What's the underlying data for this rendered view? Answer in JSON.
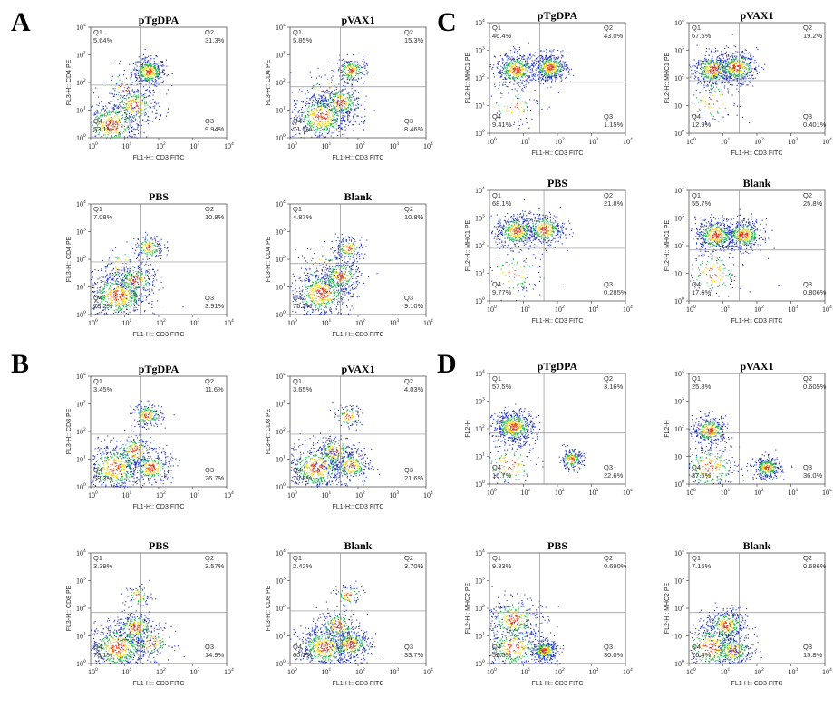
{
  "panels": [
    {
      "letter": "A",
      "color_map": "density-jet"
    },
    {
      "letter": "B"
    },
    {
      "letter": "C"
    },
    {
      "letter": "D"
    }
  ],
  "tick_labels": [
    "10",
    "0",
    "10",
    "1",
    "10",
    "2",
    "10",
    "3",
    "10",
    "4"
  ],
  "colors": {
    "low": "#1b2db8",
    "mid": "#22b14c",
    "high": "#f2d21b",
    "hot": "#e2401a",
    "gate": "#909090"
  },
  "chart_data": [
    {
      "type": "scatter",
      "panel": "A",
      "title": "pTgDPA",
      "xlabel": "FL1-H:: CD3 FITC",
      "ylabel": "FL3-H:: CD4 PE",
      "xscale": "log",
      "yscale": "log",
      "xlim": [
        1,
        10000
      ],
      "ylim": [
        1,
        10000
      ],
      "gate": [
        30,
        80
      ],
      "quadrants": {
        "Q1": "5.64%",
        "Q2": "31.3%",
        "Q3": "9.94%",
        "Q4": "53.1%"
      },
      "clusters": [
        {
          "x": 50,
          "y": 250,
          "n": 420,
          "s": 0.25
        },
        {
          "x": 4,
          "y": 3,
          "n": 500,
          "s": 0.45
        },
        {
          "x": 20,
          "y": 15,
          "n": 300,
          "s": 0.35
        },
        {
          "x": 10,
          "y": 70,
          "n": 60,
          "s": 0.35
        }
      ]
    },
    {
      "type": "scatter",
      "panel": "A",
      "title": "pVAX1",
      "xlabel": "FL1-H:: CD3 FITC",
      "ylabel": "FL3-H:: CD4 PE",
      "xscale": "log",
      "yscale": "log",
      "xlim": [
        1,
        10000
      ],
      "ylim": [
        1,
        10000
      ],
      "gate": [
        30,
        70
      ],
      "quadrants": {
        "Q1": "5.85%",
        "Q2": "15.3%",
        "Q3": "8.46%",
        "Q4": "71.2%"
      },
      "clusters": [
        {
          "x": 60,
          "y": 280,
          "n": 220,
          "s": 0.22
        },
        {
          "x": 8,
          "y": 6,
          "n": 650,
          "s": 0.45
        },
        {
          "x": 30,
          "y": 20,
          "n": 300,
          "s": 0.3
        },
        {
          "x": 10,
          "y": 60,
          "n": 50,
          "s": 0.35
        }
      ]
    },
    {
      "type": "scatter",
      "panel": "A",
      "title": "PBS",
      "xlabel": "FL1-H:: CD3 FITC",
      "ylabel": "FL3-H:: CD4 PE",
      "xscale": "log",
      "yscale": "log",
      "xlim": [
        1,
        10000
      ],
      "ylim": [
        1,
        10000
      ],
      "gate": [
        30,
        80
      ],
      "quadrants": {
        "Q1": "7.08%",
        "Q2": "10.8%",
        "Q3": "3.91%",
        "Q4": "78.2%"
      },
      "clusters": [
        {
          "x": 50,
          "y": 280,
          "n": 180,
          "s": 0.22
        },
        {
          "x": 6,
          "y": 5,
          "n": 700,
          "s": 0.45
        },
        {
          "x": 20,
          "y": 18,
          "n": 250,
          "s": 0.3
        },
        {
          "x": 8,
          "y": 60,
          "n": 60,
          "s": 0.35
        }
      ]
    },
    {
      "type": "scatter",
      "panel": "A",
      "title": "Blank",
      "xlabel": "FL1-H:: CD3 FITC",
      "ylabel": "FL3-H:: CD4 PE",
      "xscale": "log",
      "yscale": "log",
      "xlim": [
        1,
        10000
      ],
      "ylim": [
        1,
        10000
      ],
      "gate": [
        30,
        70
      ],
      "quadrants": {
        "Q1": "4.87%",
        "Q2": "10.8%",
        "Q3": "9.10%",
        "Q4": "75.2%"
      },
      "clusters": [
        {
          "x": 50,
          "y": 250,
          "n": 160,
          "s": 0.22
        },
        {
          "x": 8,
          "y": 6,
          "n": 650,
          "s": 0.45
        },
        {
          "x": 30,
          "y": 25,
          "n": 300,
          "s": 0.3
        },
        {
          "x": 8,
          "y": 60,
          "n": 50,
          "s": 0.35
        }
      ]
    },
    {
      "type": "scatter",
      "panel": "B",
      "title": "pTgDPA",
      "xlabel": "FL1-H:: CD3 FITC",
      "ylabel": "FL3-H:: CD8 PE",
      "xscale": "log",
      "yscale": "log",
      "xlim": [
        1,
        10000
      ],
      "ylim": [
        1,
        10000
      ],
      "gate": [
        30,
        80
      ],
      "quadrants": {
        "Q1": "3.45%",
        "Q2": "11.6%",
        "Q3": "26.7%",
        "Q4": "58.3%"
      },
      "clusters": [
        {
          "x": 45,
          "y": 400,
          "n": 200,
          "s": 0.22
        },
        {
          "x": 5,
          "y": 5,
          "n": 500,
          "s": 0.45
        },
        {
          "x": 60,
          "y": 5,
          "n": 300,
          "s": 0.3
        },
        {
          "x": 20,
          "y": 20,
          "n": 200,
          "s": 0.3
        }
      ]
    },
    {
      "type": "scatter",
      "panel": "B",
      "title": "pVAX1",
      "xlabel": "FL1-H:: CD3 FITC",
      "ylabel": "FL3-H:: CD8 PE",
      "xscale": "log",
      "yscale": "log",
      "xlim": [
        1,
        10000
      ],
      "ylim": [
        1,
        10000
      ],
      "gate": [
        30,
        80
      ],
      "quadrants": {
        "Q1": "3.65%",
        "Q2": "4.03%",
        "Q3": "21.6%",
        "Q4": "70.8%"
      },
      "clusters": [
        {
          "x": 50,
          "y": 350,
          "n": 100,
          "s": 0.22
        },
        {
          "x": 6,
          "y": 5,
          "n": 600,
          "s": 0.45
        },
        {
          "x": 60,
          "y": 6,
          "n": 260,
          "s": 0.3
        },
        {
          "x": 20,
          "y": 20,
          "n": 220,
          "s": 0.3
        }
      ]
    },
    {
      "type": "scatter",
      "panel": "B",
      "title": "PBS",
      "xlabel": "FL1-H:: CD3 FITC",
      "ylabel": "FL3-H:: CD8 PE",
      "xscale": "log",
      "yscale": "log",
      "xlim": [
        1,
        10000
      ],
      "ylim": [
        1,
        10000
      ],
      "gate": [
        30,
        70
      ],
      "quadrants": {
        "Q1": "3.39%",
        "Q2": "3.57%",
        "Q3": "14.9%",
        "Q4": "78.1%"
      },
      "clusters": [
        {
          "x": 25,
          "y": 300,
          "n": 80,
          "s": 0.2
        },
        {
          "x": 6,
          "y": 4,
          "n": 650,
          "s": 0.45
        },
        {
          "x": 20,
          "y": 20,
          "n": 300,
          "s": 0.3
        },
        {
          "x": 60,
          "y": 6,
          "n": 150,
          "s": 0.3
        }
      ]
    },
    {
      "type": "scatter",
      "panel": "B",
      "title": "Blank",
      "xlabel": "FL1-H:: CD3 FITC",
      "ylabel": "FL3-H:: CD8 PE",
      "xscale": "log",
      "yscale": "log",
      "xlim": [
        1,
        10000
      ],
      "ylim": [
        1,
        10000
      ],
      "gate": [
        30,
        80
      ],
      "quadrants": {
        "Q1": "2.42%",
        "Q2": "3.70%",
        "Q3": "33.7%",
        "Q4": "60.1%"
      },
      "clusters": [
        {
          "x": 50,
          "y": 300,
          "n": 90,
          "s": 0.22
        },
        {
          "x": 10,
          "y": 4,
          "n": 600,
          "s": 0.4
        },
        {
          "x": 60,
          "y": 5,
          "n": 350,
          "s": 0.3
        },
        {
          "x": 25,
          "y": 25,
          "n": 200,
          "s": 0.3
        }
      ]
    },
    {
      "type": "scatter",
      "panel": "C",
      "title": "pTgDPA",
      "xlabel": "FL1-H:: CD3 FITC",
      "ylabel": "FL2-H:: MHC1 PE",
      "xscale": "log",
      "yscale": "log",
      "xlim": [
        1,
        10000
      ],
      "ylim": [
        1,
        10000
      ],
      "gate": [
        30,
        70
      ],
      "quadrants": {
        "Q1": "46.4%",
        "Q2": "43.0%",
        "Q3": "1.15%",
        "Q4": "9.41%"
      },
      "clusters": [
        {
          "x": 6,
          "y": 200,
          "n": 500,
          "s": 0.3
        },
        {
          "x": 60,
          "y": 250,
          "n": 500,
          "s": 0.25
        },
        {
          "x": 5,
          "y": 10,
          "n": 80,
          "s": 0.4
        }
      ]
    },
    {
      "type": "scatter",
      "panel": "C",
      "title": "pVAX1",
      "xlabel": "FL1-H:: CD3 FITC",
      "ylabel": "FL2-H:: MHC1 PE",
      "xscale": "log",
      "yscale": "log",
      "xlim": [
        1,
        10000
      ],
      "ylim": [
        1,
        10000
      ],
      "gate": [
        30,
        80
      ],
      "quadrants": {
        "Q1": "67.5%",
        "Q2": "19.2%",
        "Q3": "0.401%",
        "Q4": "12.9%"
      },
      "clusters": [
        {
          "x": 5,
          "y": 200,
          "n": 500,
          "s": 0.3
        },
        {
          "x": 25,
          "y": 250,
          "n": 450,
          "s": 0.3
        },
        {
          "x": 5,
          "y": 15,
          "n": 100,
          "s": 0.45
        }
      ]
    },
    {
      "type": "scatter",
      "panel": "C",
      "title": "PBS",
      "xlabel": "FL1-H:: CD3 FITC",
      "ylabel": "FL2-H:: MHC1 PE",
      "xscale": "log",
      "yscale": "log",
      "xlim": [
        1,
        10000
      ],
      "ylim": [
        1,
        10000
      ],
      "gate": [
        40,
        80
      ],
      "quadrants": {
        "Q1": "68.1%",
        "Q2": "21.8%",
        "Q3": "0.285%",
        "Q4": "9.77%"
      },
      "clusters": [
        {
          "x": 6,
          "y": 350,
          "n": 500,
          "s": 0.3
        },
        {
          "x": 40,
          "y": 400,
          "n": 380,
          "s": 0.3
        },
        {
          "x": 5,
          "y": 10,
          "n": 100,
          "s": 0.45
        }
      ]
    },
    {
      "type": "scatter",
      "panel": "C",
      "title": "Blank",
      "xlabel": "FL1-H:: CD3 FITC",
      "ylabel": "FL2-H:: MHC1 PE",
      "xscale": "log",
      "yscale": "log",
      "xlim": [
        1,
        10000
      ],
      "ylim": [
        1,
        10000
      ],
      "gate": [
        30,
        70
      ],
      "quadrants": {
        "Q1": "55.7%",
        "Q2": "25.8%",
        "Q3": "0.806%",
        "Q4": "17.6%"
      },
      "clusters": [
        {
          "x": 6,
          "y": 250,
          "n": 500,
          "s": 0.3
        },
        {
          "x": 40,
          "y": 250,
          "n": 450,
          "s": 0.28
        },
        {
          "x": 5,
          "y": 10,
          "n": 160,
          "s": 0.45
        }
      ]
    },
    {
      "type": "scatter",
      "panel": "D",
      "title": "pTgDPA",
      "xlabel": "",
      "ylabel": "FL2-H",
      "xscale": "log",
      "yscale": "log",
      "xlim": [
        1,
        10000
      ],
      "ylim": [
        1,
        10000
      ],
      "gate": [
        40,
        70
      ],
      "quadrants": {
        "Q1": "57.5%",
        "Q2": "3.16%",
        "Q3": "22.6%",
        "Q4": "16.7%"
      },
      "clusters": [
        {
          "x": 5,
          "y": 120,
          "n": 600,
          "s": 0.3
        },
        {
          "x": 250,
          "y": 8,
          "n": 220,
          "s": 0.18
        },
        {
          "x": 4,
          "y": 5,
          "n": 150,
          "s": 0.45
        }
      ]
    },
    {
      "type": "scatter",
      "panel": "D",
      "title": "pVAX1",
      "xlabel": "",
      "ylabel": "FL2-H",
      "xscale": "log",
      "yscale": "log",
      "xlim": [
        1,
        10000
      ],
      "ylim": [
        1,
        10000
      ],
      "gate": [
        30,
        70
      ],
      "quadrants": {
        "Q1": "25.8%",
        "Q2": "0.605%",
        "Q3": "36.0%",
        "Q4": "37.5%"
      },
      "clusters": [
        {
          "x": 4,
          "y": 90,
          "n": 350,
          "s": 0.25
        },
        {
          "x": 200,
          "y": 4,
          "n": 350,
          "s": 0.2
        },
        {
          "x": 4,
          "y": 4,
          "n": 300,
          "s": 0.45
        }
      ]
    },
    {
      "type": "scatter",
      "panel": "D",
      "title": "PBS",
      "xlabel": "FL1-H:: CD3 FITC",
      "ylabel": "FL2-H:: MHC2 PE",
      "xscale": "log",
      "yscale": "log",
      "xlim": [
        1,
        10000
      ],
      "ylim": [
        1,
        10000
      ],
      "gate": [
        30,
        70
      ],
      "quadrants": {
        "Q1": "9.83%",
        "Q2": "0.690%",
        "Q3": "30.0%",
        "Q4": "59.5%"
      },
      "clusters": [
        {
          "x": 5,
          "y": 40,
          "n": 350,
          "s": 0.4
        },
        {
          "x": 40,
          "y": 3,
          "n": 380,
          "s": 0.2
        },
        {
          "x": 5,
          "y": 4,
          "n": 400,
          "s": 0.45
        }
      ]
    },
    {
      "type": "scatter",
      "panel": "D",
      "title": "Blank",
      "xlabel": "FL1-H:: CD3 FITC",
      "ylabel": "FL2-H:: MHC2 PE",
      "xscale": "log",
      "yscale": "log",
      "xlim": [
        1,
        10000
      ],
      "ylim": [
        1,
        10000
      ],
      "gate": [
        30,
        70
      ],
      "quadrants": {
        "Q1": "7.16%",
        "Q2": "0.686%",
        "Q3": "15.8%",
        "Q4": "76.4%"
      },
      "clusters": [
        {
          "x": 12,
          "y": 25,
          "n": 400,
          "s": 0.3
        },
        {
          "x": 20,
          "y": 3,
          "n": 300,
          "s": 0.3
        },
        {
          "x": 4,
          "y": 4,
          "n": 350,
          "s": 0.45
        }
      ]
    }
  ]
}
